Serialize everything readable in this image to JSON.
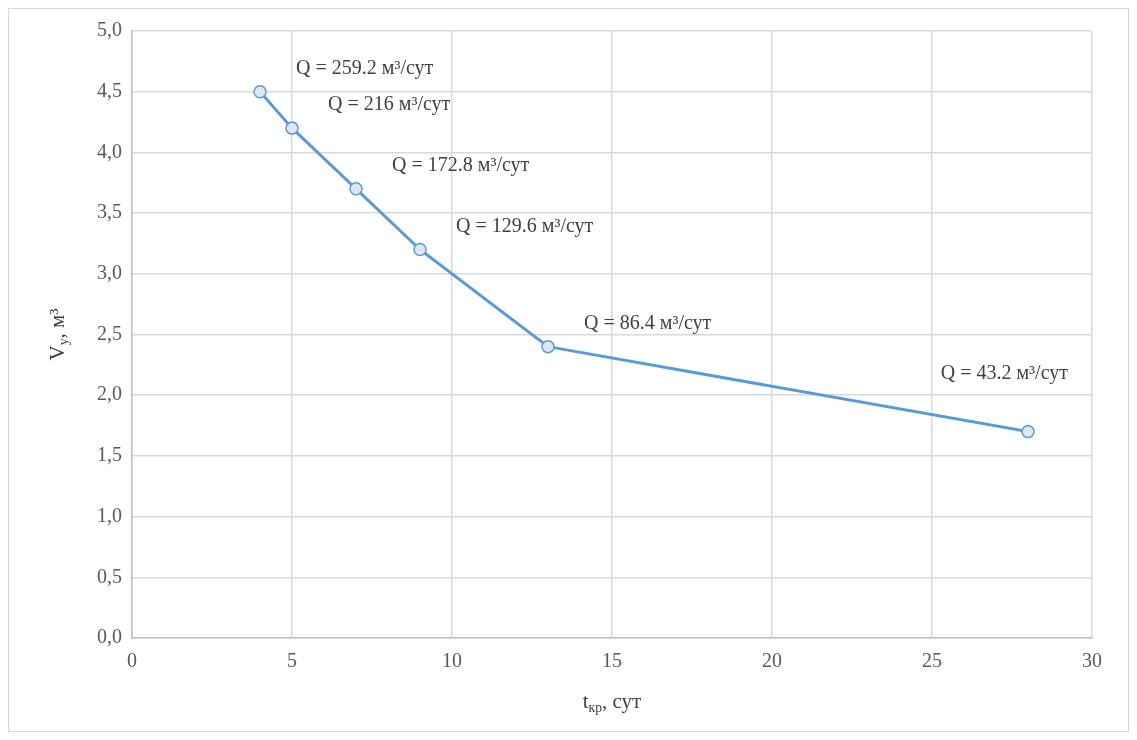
{
  "chart_data": {
    "type": "line",
    "xlabel": "t$_{кр}$, сут",
    "ylabel": "V$_{у}$, м³",
    "series": [
      {
        "color": "#5b9bd5",
        "x": [
          4,
          5,
          7,
          9,
          13,
          28
        ],
        "values": [
          4.5,
          4.2,
          3.7,
          3.2,
          2.4,
          1.7
        ]
      }
    ],
    "xlim": [
      0,
      30
    ],
    "xticks": [
      0,
      5,
      10,
      15,
      20,
      25,
      30
    ],
    "ylim": [
      0,
      5
    ],
    "yticks": [
      {
        "value": 0,
        "label": "0,0"
      },
      {
        "value": 0.5,
        "label": "0,5"
      },
      {
        "value": 1,
        "label": "1,0"
      },
      {
        "value": 1.5,
        "label": "1,5"
      },
      {
        "value": 2,
        "label": "2,0"
      },
      {
        "value": 2.5,
        "label": "2,5"
      },
      {
        "value": 3,
        "label": "3,0"
      },
      {
        "value": 3.5,
        "label": "3,5"
      },
      {
        "value": 4,
        "label": "4,0"
      },
      {
        "value": 4.5,
        "label": "4,5"
      },
      {
        "value": 5,
        "label": "5,0"
      }
    ],
    "annotations": [
      {
        "text": "Q = 259.2 м³/сут",
        "x": 4,
        "y": 4.5
      },
      {
        "text": "Q = 216 м³/сут",
        "x": 5,
        "y": 4.2
      },
      {
        "text": "Q = 172.8 м³/сут",
        "x": 7,
        "y": 3.7
      },
      {
        "text": "Q = 129.6 м³/сут",
        "x": 9,
        "y": 3.2
      },
      {
        "text": "Q = 86.4 м³/сут",
        "x": 13,
        "y": 2.4
      },
      {
        "text": "Q = 43.2 м³/сут",
        "x": 28,
        "y": 1.7
      }
    ],
    "grid": true,
    "legend": false,
    "marker": "circle",
    "line_style": "solid"
  }
}
